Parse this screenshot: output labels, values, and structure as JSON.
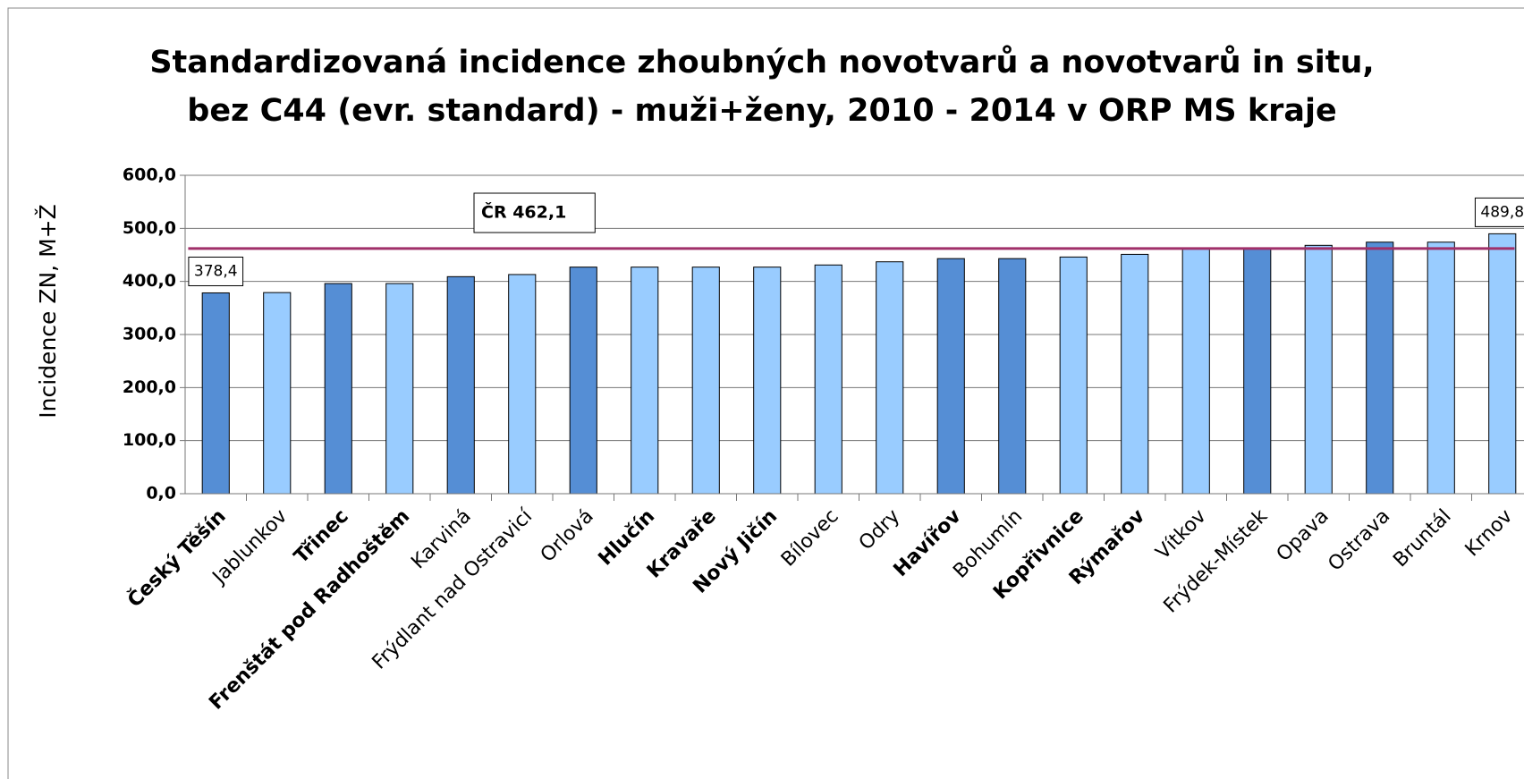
{
  "chart_data": {
    "type": "bar",
    "title": [
      "Standardizovaná incidence zhoubných novotvarů a novotvarů in situ,",
      "bez C44 (evr. standard) - muži+ženy, 2010 - 2014 v ORP MS kraje"
    ],
    "y_label": "Incidence ZN, M+Ž",
    "categories": [
      "Český Těšín",
      "Jablunkov",
      "Třinec",
      "Frenštát pod Radhoštěm",
      "Karviná",
      "Frýdlant nad Ostravicí",
      "Orlová",
      "Hlučín",
      "Kravaře",
      "Nový Jičín",
      "Bílovec",
      "Odry",
      "Havířov",
      "Bohumín",
      "Kopřivnice",
      "Rýmařov",
      "Vítkov",
      "Frýdek-Místek",
      "Opava",
      "Ostrava",
      "Bruntál",
      "Krnov"
    ],
    "category_bold": [
      true,
      false,
      true,
      true,
      false,
      false,
      false,
      true,
      true,
      true,
      false,
      false,
      true,
      false,
      true,
      true,
      false,
      false,
      false,
      false,
      false,
      false
    ],
    "values": [
      378.4,
      379,
      396,
      396,
      409,
      413,
      427,
      427,
      427,
      427,
      431,
      437,
      443,
      443,
      446,
      451,
      461,
      463,
      468,
      474,
      474,
      489.8
    ],
    "value_labels": [
      "378,4",
      null,
      null,
      null,
      null,
      null,
      null,
      null,
      null,
      null,
      null,
      null,
      null,
      null,
      null,
      null,
      null,
      null,
      null,
      null,
      null,
      "489,8"
    ],
    "colors": [
      "#558ed5",
      "#99ccff",
      "#558ed5",
      "#99ccff",
      "#558ed5",
      "#99ccff",
      "#558ed5",
      "#99ccff",
      "#99ccff",
      "#99ccff",
      "#99ccff",
      "#99ccff",
      "#558ed5",
      "#558ed5",
      "#99ccff",
      "#99ccff",
      "#99ccff",
      "#558ed5",
      "#99ccff",
      "#558ed5",
      "#99ccff",
      "#99ccff"
    ],
    "reference_line": {
      "label": "ČR 462,1",
      "value": 462.1,
      "color": "#a0306a"
    },
    "ylim": [
      0,
      600
    ],
    "yticks": [
      {
        "value": 0,
        "label": "0,0"
      },
      {
        "value": 100,
        "label": "100,0"
      },
      {
        "value": 200,
        "label": "200,0"
      },
      {
        "value": 300,
        "label": "300,0"
      },
      {
        "value": 400,
        "label": "400,0"
      },
      {
        "value": 500,
        "label": "500,0"
      },
      {
        "value": 600,
        "label": "600,0"
      }
    ],
    "grid": true
  }
}
